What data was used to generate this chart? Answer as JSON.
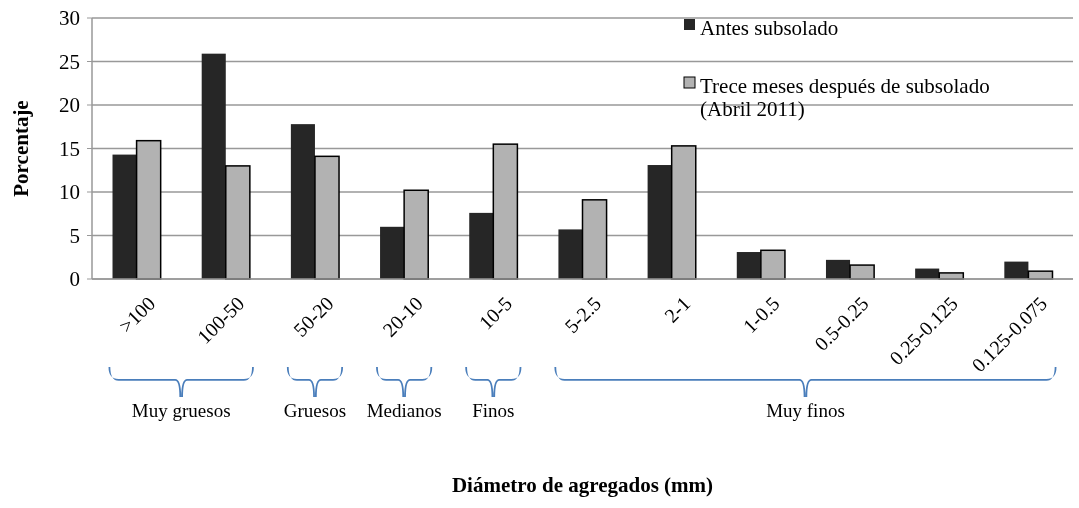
{
  "chart_data": {
    "type": "bar",
    "xlabel": "Diámetro de agregados (mm)",
    "ylabel": "Porcentaje",
    "categories": [
      ">100",
      "100-50",
      "50-20",
      "20-10",
      "10-5",
      "5-2.5",
      "2-1",
      "1-0.5",
      "0.5-0.25",
      "0.25-0.125",
      "0.125-0.075"
    ],
    "series": [
      {
        "name": "Antes subsolado",
        "color": "#262626",
        "values": [
          14.3,
          25.9,
          17.8,
          6.0,
          7.6,
          5.7,
          13.1,
          3.1,
          2.2,
          1.2,
          2.0
        ]
      },
      {
        "name": "Trece meses después de subsolado (Abril 2011)",
        "color": "#b2b2b2",
        "values": [
          15.9,
          13.0,
          14.1,
          10.2,
          15.5,
          9.1,
          15.3,
          3.3,
          1.6,
          0.7,
          0.9
        ]
      }
    ],
    "ylim": [
      0,
      30
    ],
    "yticks": [
      0,
      5,
      10,
      15,
      20,
      25,
      30
    ],
    "grid": "y",
    "legend": "top right",
    "annotations": [
      "Muy gruesos",
      "Gruesos",
      "Medianos",
      "Finos",
      "Muy finos"
    ]
  }
}
